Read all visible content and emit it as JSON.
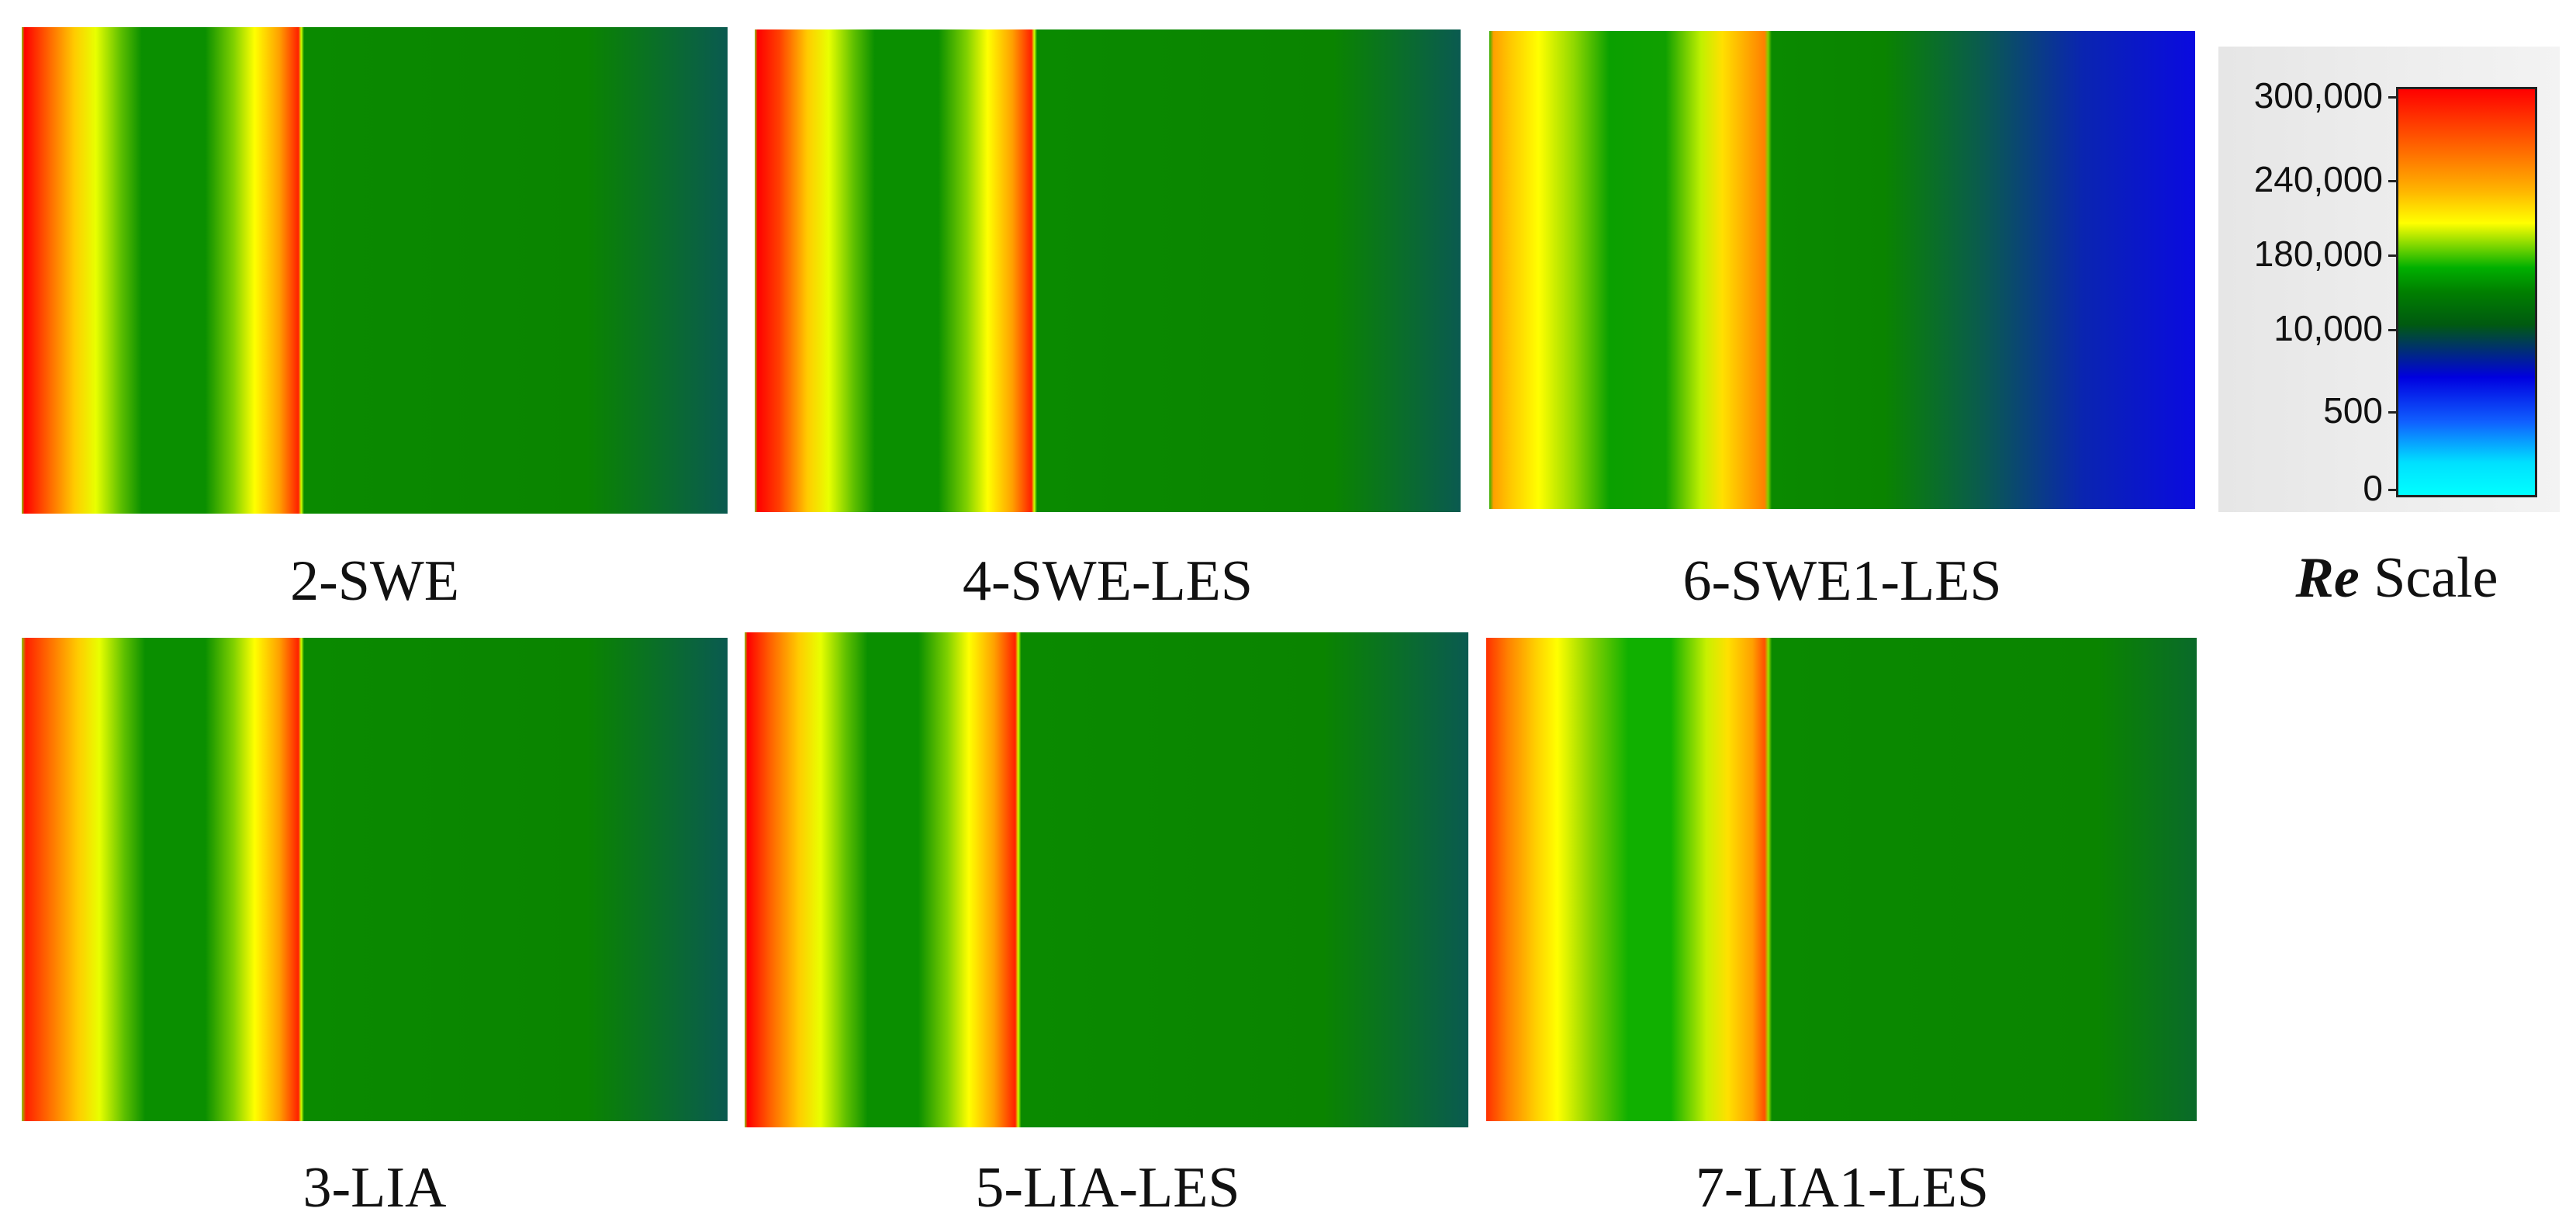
{
  "panels": [
    {
      "label": "2-SWE"
    },
    {
      "label": "4-SWE-LES"
    },
    {
      "label": "6-SWE1-LES"
    },
    {
      "label": "3-LIA"
    },
    {
      "label": "5-LIA-LES"
    },
    {
      "label": "7-LIA1-LES"
    }
  ],
  "legend": {
    "symbol": "Re",
    "title": "Scale",
    "ticks": [
      "300,000",
      "240,000",
      "180,000",
      "10,000",
      "500",
      "0"
    ]
  }
}
